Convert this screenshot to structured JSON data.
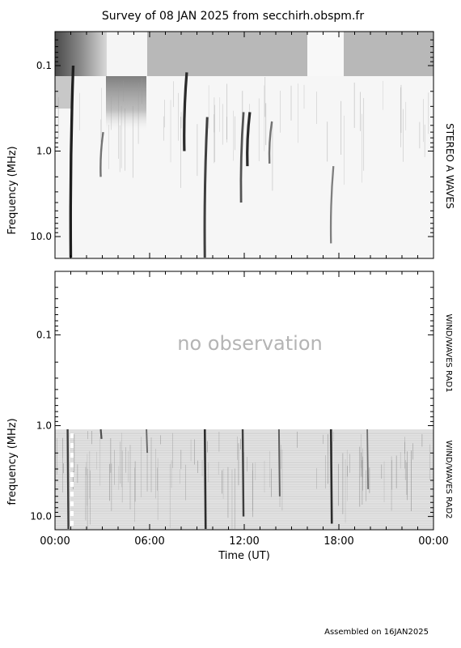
{
  "title": "Survey of 08 JAN 2025 from secchirh.obspm.fr",
  "footer": "Assembled on 16JAN2025",
  "colors": {
    "frame": "#000000",
    "overlay_text": "#b4b4b4",
    "ink": "#000000"
  },
  "chart_data": [
    {
      "type": "heatmap",
      "title": "",
      "instrument_label": "STEREO A WAVES",
      "xlabel": "",
      "ylabel": "Frequency (MHz)",
      "y_scale": "log",
      "y_reversed": true,
      "ylim": [
        0.04,
        18
      ],
      "xlim": [
        "00:00",
        "24:00"
      ],
      "yticks": [
        {
          "value": 0.1,
          "label": "0.1"
        },
        {
          "value": 1.0,
          "label": "1.0"
        },
        {
          "value": 10.0,
          "label": "10.0"
        }
      ],
      "grid": false,
      "radio_bursts": [
        {
          "time_h": 1.0,
          "f_low": 0.1,
          "f_high": 18,
          "strength": 0.9
        },
        {
          "time_h": 2.9,
          "f_low": 0.6,
          "f_high": 2.0,
          "strength": 0.5
        },
        {
          "time_h": 8.2,
          "f_low": 0.12,
          "f_high": 1.0,
          "strength": 0.85
        },
        {
          "time_h": 9.5,
          "f_low": 0.4,
          "f_high": 18,
          "strength": 0.75
        },
        {
          "time_h": 11.8,
          "f_low": 0.35,
          "f_high": 4.0,
          "strength": 0.65
        },
        {
          "time_h": 12.2,
          "f_low": 0.35,
          "f_high": 1.5,
          "strength": 0.85
        },
        {
          "time_h": 13.6,
          "f_low": 0.45,
          "f_high": 1.4,
          "strength": 0.5
        },
        {
          "time_h": 17.5,
          "f_low": 1.5,
          "f_high": 12,
          "strength": 0.45
        }
      ]
    },
    {
      "type": "heatmap",
      "title": "",
      "instrument_label_top": "WIND/WAVES RAD1",
      "instrument_label_bottom": "WIND/WAVES RAD2",
      "overlay_text": "no observation",
      "xlabel": "Time (UT)",
      "ylabel": "frequency (MHz)",
      "y_scale": "log",
      "y_reversed": true,
      "ylim": [
        0.02,
        14
      ],
      "xlim": [
        "00:00",
        "24:00"
      ],
      "xticks": [
        "00:00",
        "06:00",
        "12:00",
        "18:00",
        "00:00"
      ],
      "yticks": [
        {
          "value": 0.1,
          "label": "0.1"
        },
        {
          "value": 1.0,
          "label": "1.0"
        },
        {
          "value": 10.0,
          "label": "10.0"
        }
      ],
      "grid": false,
      "radio_bursts": [
        {
          "time_h": 0.8,
          "f_low": 1.0,
          "f_high": 14,
          "strength": 0.7
        },
        {
          "time_h": 2.9,
          "f_low": 1.0,
          "f_high": 1.4,
          "strength": 0.6
        },
        {
          "time_h": 5.8,
          "f_low": 1.0,
          "f_high": 2.0,
          "strength": 0.45
        },
        {
          "time_h": 9.5,
          "f_low": 1.0,
          "f_high": 14,
          "strength": 0.8
        },
        {
          "time_h": 11.9,
          "f_low": 1.0,
          "f_high": 10,
          "strength": 0.7
        },
        {
          "time_h": 14.2,
          "f_low": 1.0,
          "f_high": 6,
          "strength": 0.5
        },
        {
          "time_h": 17.5,
          "f_low": 1.0,
          "f_high": 12,
          "strength": 0.8
        },
        {
          "time_h": 19.8,
          "f_low": 1.0,
          "f_high": 5,
          "strength": 0.4
        }
      ]
    }
  ]
}
